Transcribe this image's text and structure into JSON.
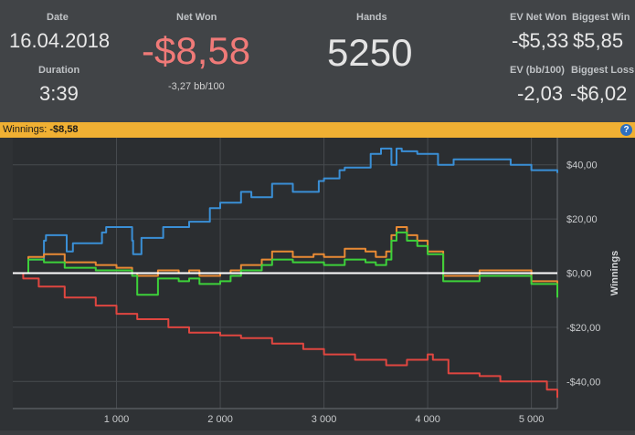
{
  "stats": {
    "date": {
      "label": "Date",
      "value": "16.04.2018"
    },
    "duration": {
      "label": "Duration",
      "value": "3:39"
    },
    "net_won": {
      "label": "Net Won",
      "value": "-$8,58",
      "sub": "-3,27 bb/100"
    },
    "hands": {
      "label": "Hands",
      "value": "5250"
    },
    "ev_net_won": {
      "label": "EV Net Won",
      "value": "-$5,33"
    },
    "biggest_win": {
      "label": "Biggest Win",
      "value": "$5,85"
    },
    "ev_bb100": {
      "label": "EV (bb/100)",
      "value": "-2,03"
    },
    "biggest_loss": {
      "label": "Biggest Loss",
      "value": "-$6,02"
    }
  },
  "winnings_bar": {
    "label": "Winnings:",
    "value": "-$8,58",
    "help_icon": "?"
  },
  "colors": {
    "net_won_negative": "#f07a78",
    "header_bar": "#f0b033",
    "series_blue": "#3a8fd6",
    "series_orange": "#e98a34",
    "series_green": "#3dd13a",
    "series_red": "#e04640"
  },
  "chart_data": {
    "type": "line",
    "ylabel": "Winnings",
    "xlim": [
      0,
      5250
    ],
    "ylim": [
      -50,
      50
    ],
    "x_ticks": [
      1000,
      2000,
      3000,
      4000,
      5000
    ],
    "x_tick_labels": [
      "1 000",
      "2 000",
      "3 000",
      "4 000",
      "5 000"
    ],
    "y_ticks": [
      40,
      20,
      0,
      -20,
      -40
    ],
    "y_tick_labels": [
      "$40,00",
      "$20,00",
      "$0,00",
      "-$20,00",
      "-$40,00"
    ],
    "grid": true,
    "series": [
      {
        "color": "#3a8fd6",
        "x": [
          0,
          150,
          300,
          320,
          520,
          580,
          860,
          900,
          1150,
          1160,
          1240,
          1450,
          1700,
          1900,
          2000,
          2200,
          2300,
          2500,
          2700,
          2950,
          3000,
          3150,
          3200,
          3450,
          3550,
          3650,
          3700,
          3750,
          3900,
          4100,
          4250,
          4500,
          4800,
          5000,
          5250
        ],
        "y": [
          0,
          5,
          12,
          14,
          8,
          11,
          15,
          17,
          12,
          7,
          13,
          17,
          19,
          24,
          26,
          30,
          28,
          33,
          30,
          34,
          35,
          38,
          39,
          44,
          46,
          40,
          46,
          45,
          44,
          40,
          42,
          42,
          40,
          38,
          37
        ]
      },
      {
        "color": "#e98a34",
        "x": [
          0,
          150,
          300,
          500,
          800,
          1000,
          1150,
          1200,
          1400,
          1600,
          1700,
          1800,
          2000,
          2100,
          2200,
          2400,
          2500,
          2700,
          2900,
          3000,
          3200,
          3400,
          3500,
          3600,
          3650,
          3700,
          3800,
          3900,
          4000,
          4150,
          4500,
          4800,
          5000,
          5250
        ],
        "y": [
          0,
          6,
          7,
          4,
          3,
          2,
          0,
          -1,
          1,
          0,
          1,
          -1,
          0,
          1,
          3,
          5,
          8,
          6,
          7,
          6,
          9,
          8,
          6,
          8,
          14,
          17,
          14,
          12,
          8,
          -1,
          1,
          1,
          -3,
          -5
        ]
      },
      {
        "color": "#3dd13a",
        "x": [
          0,
          150,
          300,
          500,
          800,
          1000,
          1150,
          1200,
          1400,
          1600,
          1700,
          1800,
          2000,
          2100,
          2200,
          2400,
          2500,
          2700,
          2900,
          3000,
          3200,
          3400,
          3500,
          3600,
          3650,
          3700,
          3800,
          3900,
          4000,
          4150,
          4500,
          4800,
          5000,
          5250
        ],
        "y": [
          0,
          5,
          4,
          2,
          1,
          1,
          -1,
          -8,
          -2,
          -3,
          -2,
          -4,
          -3,
          -1,
          1,
          3,
          5,
          4,
          4,
          3,
          5,
          4,
          3,
          5,
          12,
          15,
          12,
          10,
          7,
          -3,
          -1,
          -1,
          -4,
          -9
        ]
      },
      {
        "color": "#e04640",
        "x": [
          0,
          100,
          250,
          500,
          800,
          1000,
          1200,
          1500,
          1700,
          2000,
          2200,
          2500,
          2800,
          3000,
          3300,
          3600,
          3800,
          4000,
          4050,
          4200,
          4500,
          4700,
          5000,
          5150,
          5250
        ],
        "y": [
          0,
          -2,
          -5,
          -9,
          -12,
          -15,
          -17,
          -20,
          -22,
          -23,
          -24,
          -26,
          -28,
          -30,
          -32,
          -34,
          -32,
          -30,
          -32,
          -37,
          -38,
          -40,
          -40,
          -43,
          -46
        ]
      }
    ]
  }
}
